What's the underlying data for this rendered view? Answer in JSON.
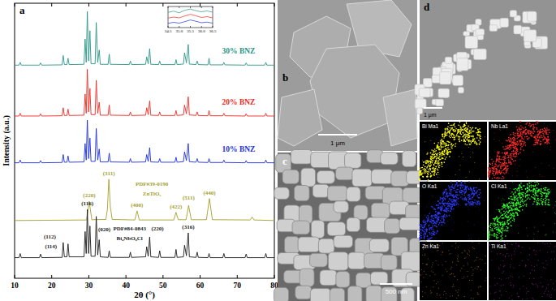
{
  "chart_data": [
    {
      "type": "line",
      "x_label": "2θ (°)",
      "y_label": "Intensity (a.u.)",
      "xlim": [
        10,
        80
      ],
      "xticks": [
        10,
        20,
        30,
        40,
        50,
        60,
        70,
        80
      ],
      "ylim": [
        0,
        100
      ],
      "tick_labels": "x",
      "x": [
        10,
        11.2,
        11.5,
        11.8,
        16.7,
        17,
        17.3,
        22.8,
        23.1,
        23.4,
        24.1,
        24.4,
        24.7,
        28.7,
        29.0,
        29.3,
        29.6,
        29.95,
        30.3,
        30.6,
        31.7,
        32.0,
        32.4,
        32.8,
        33.1,
        35.2,
        35.5,
        35.8,
        40.9,
        41.2,
        41.5,
        45.3,
        45.6,
        46.0,
        46.4,
        46.7,
        48.8,
        49.1,
        49.4,
        53.2,
        53.5,
        53.8,
        55.5,
        55.8,
        56.3,
        56.8,
        57.1,
        58.9,
        59.2,
        59.5,
        62.1,
        62.4,
        62.7,
        66.1,
        66.4,
        66.7,
        72.1,
        72.4,
        72.7,
        77.4,
        77.7,
        78,
        80
      ],
      "series": [
        {
          "name": "30% BNZ",
          "color": "#2a9687",
          "values": [
            77.5,
            77.5,
            78.5,
            77.5,
            77.5,
            78.3,
            77.5,
            77.6,
            81,
            77.7,
            77.7,
            80,
            77.7,
            77.8,
            87,
            78.5,
            97,
            79,
            90,
            78,
            78,
            93,
            78.5,
            83,
            77.8,
            77.8,
            81.5,
            77.8,
            77.7,
            79,
            77.7,
            77.8,
            80.5,
            78,
            83.5,
            77.8,
            77.7,
            79,
            77.7,
            77.7,
            79.5,
            77.7,
            77.9,
            82,
            78.3,
            85,
            77.9,
            77.7,
            79,
            77.7,
            77.6,
            80,
            77.6,
            77.6,
            78.5,
            77.6,
            77.5,
            78.3,
            77.5,
            77.5,
            78.5,
            77.5,
            77.5
          ]
        },
        {
          "name": "20% BNZ",
          "color": "#ee2a24",
          "values": [
            59,
            59,
            60,
            59,
            59,
            59.8,
            59,
            59.1,
            62,
            59.2,
            59.2,
            61.5,
            59.2,
            59.3,
            67,
            60,
            76,
            60.5,
            69,
            59.5,
            59.5,
            72,
            60,
            64,
            59.3,
            59.3,
            63,
            59.3,
            59.2,
            60.5,
            59.2,
            59.3,
            62,
            59.5,
            64.5,
            59.3,
            59.2,
            60.5,
            59.2,
            59.2,
            61,
            59.2,
            59.4,
            63,
            59.8,
            66,
            59.4,
            59.2,
            60.5,
            59.2,
            59.1,
            61,
            59.1,
            59.1,
            60,
            59.1,
            59,
            59.8,
            59,
            59,
            60,
            59,
            59
          ]
        },
        {
          "name": "10% BNZ",
          "color": "#1c2ee0",
          "values": [
            42,
            42,
            43,
            42,
            42,
            42.8,
            42,
            42.1,
            45,
            42.2,
            42.2,
            44.5,
            42.2,
            42.3,
            49,
            43,
            57.5,
            43.5,
            51,
            42.5,
            42.5,
            54.5,
            43,
            47,
            42.3,
            42.3,
            45.5,
            42.3,
            42.2,
            43.5,
            42.2,
            42.3,
            45,
            42.5,
            47.5,
            42.3,
            42.2,
            43.5,
            42.2,
            42.2,
            44,
            42.2,
            42.4,
            46,
            42.8,
            49,
            42.4,
            42.2,
            43.5,
            42.2,
            42.1,
            43.5,
            42.1,
            42.1,
            43,
            42.1,
            42,
            42.8,
            42,
            42,
            43,
            42,
            42
          ]
        },
        {
          "color": "#a3a02a",
          "x": [
            10,
            29.4,
            30.1,
            30.8,
            34.6,
            35.0,
            35.4,
            35.8,
            36.3,
            42.4,
            43.0,
            43.6,
            52.9,
            53.5,
            54.1,
            56.2,
            56.9,
            57.6,
            61.7,
            62.5,
            63.3,
            73.5,
            74.0,
            74.5,
            80
          ],
          "values": [
            21,
            21.2,
            28,
            21.3,
            21.4,
            25,
            36,
            26,
            21.4,
            21.2,
            24.5,
            21.2,
            21.2,
            24,
            21.3,
            21.3,
            26.5,
            21.3,
            21.3,
            29,
            21.3,
            21.2,
            22.3,
            21.2,
            21
          ]
        },
        {
          "color": "#1a1a1a",
          "values": [
            7.5,
            7.5,
            9.0,
            7.5,
            7.5,
            8.8,
            7.5,
            7.6,
            13,
            7.8,
            7.8,
            12.5,
            7.8,
            7.8,
            17,
            9,
            25,
            9,
            19,
            8,
            8,
            22.5,
            8.5,
            14,
            7.8,
            7.6,
            10,
            7.6,
            7.6,
            9.5,
            7.6,
            7.8,
            11.5,
            8,
            15,
            7.8,
            7.6,
            10,
            7.6,
            7.6,
            10.5,
            7.6,
            7.8,
            12,
            8.2,
            16.5,
            7.8,
            7.6,
            9.5,
            7.6,
            7.5,
            9,
            7.5,
            7.5,
            9,
            7.5,
            7.5,
            8.8,
            7.5,
            7.5,
            9,
            7.5,
            7.5
          ]
        }
      ],
      "annotations": [
        {
          "text": "(220)",
          "x": 30.1,
          "y": 29.5,
          "color": "#a3a02a"
        },
        {
          "text": "(311)",
          "x": 35.4,
          "y": 37.5,
          "color": "#a3a02a"
        },
        {
          "text": "(400)",
          "x": 43,
          "y": 26,
          "color": "#a3a02a"
        },
        {
          "text": "(422)",
          "x": 53.5,
          "y": 25.5,
          "color": "#a3a02a"
        },
        {
          "text": "(511)",
          "x": 56.9,
          "y": 28.5,
          "color": "#a3a02a"
        },
        {
          "text": "(440)",
          "x": 62.5,
          "y": 30.5,
          "color": "#a3a02a"
        },
        {
          "text": "PDF#39-0190",
          "x": 47,
          "y": 33.5,
          "color": "#a3a02a"
        },
        {
          "text": "ZnTiO₃",
          "x": 47,
          "y": 30,
          "color": "#a3a02a"
        },
        {
          "text": "PDF#84-0843",
          "x": 41,
          "y": 17.5,
          "color": "#1a1a1a"
        },
        {
          "text": "Bi₄NbO₈Cl",
          "x": 41,
          "y": 14,
          "color": "#1a1a1a"
        },
        {
          "text": "(112)",
          "x": 19.5,
          "y": 14.5,
          "color": "#1a1a1a"
        },
        {
          "text": "(114)",
          "x": 19.8,
          "y": 11,
          "color": "#1a1a1a"
        },
        {
          "text": "(116)",
          "x": 29.6,
          "y": 26.5,
          "color": "#1a1a1a"
        },
        {
          "text": "(020)",
          "x": 34.2,
          "y": 17,
          "color": "#1a1a1a"
        },
        {
          "text": "(220)",
          "x": 48.5,
          "y": 17.5,
          "color": "#1a1a1a"
        },
        {
          "text": "(316)",
          "x": 56.8,
          "y": 18,
          "color": "#1a1a1a"
        }
      ]
    },
    {
      "type": "line",
      "xlim": [
        34.5,
        36.5
      ],
      "xticks": [
        34.5,
        {
          "value": 35,
          "label": "35.0"
        },
        35.5,
        {
          "value": 36,
          "label": "36.0"
        },
        36.5
      ],
      "ylim": [
        0,
        10
      ],
      "tick_labels": "x",
      "x": [
        34.5,
        34.75,
        35,
        35.25,
        35.5,
        35.75,
        36,
        36.25,
        36.5
      ],
      "series": [
        {
          "color": "#2a9687",
          "values": [
            7.2,
            7.8,
            7.0,
            8.2,
            8.8,
            8.0,
            7.5,
            7.9,
            7.3
          ]
        },
        {
          "color": "#ee2a24",
          "values": [
            4.5,
            5.0,
            4.6,
            5.5,
            6.3,
            5.6,
            4.8,
            5.2,
            4.6
          ]
        },
        {
          "color": "#1c2ee0",
          "values": [
            2.0,
            2.5,
            2.1,
            2.8,
            3.6,
            3.0,
            2.3,
            2.6,
            2.1
          ]
        }
      ]
    }
  ],
  "figure": {
    "panels": [
      {
        "label": "a"
      },
      {
        "label": "b",
        "scale_bar": "1 μm"
      },
      {
        "label": "c",
        "scale_bar": "500 nm"
      },
      {
        "label": "d",
        "scale_bar": "1 μm",
        "maps": [
          "Bi Ma1",
          "Nb La1",
          "O Ka1",
          "Cl Ka1",
          "Zn Ka1",
          "Ti Ka1"
        ]
      }
    ]
  }
}
